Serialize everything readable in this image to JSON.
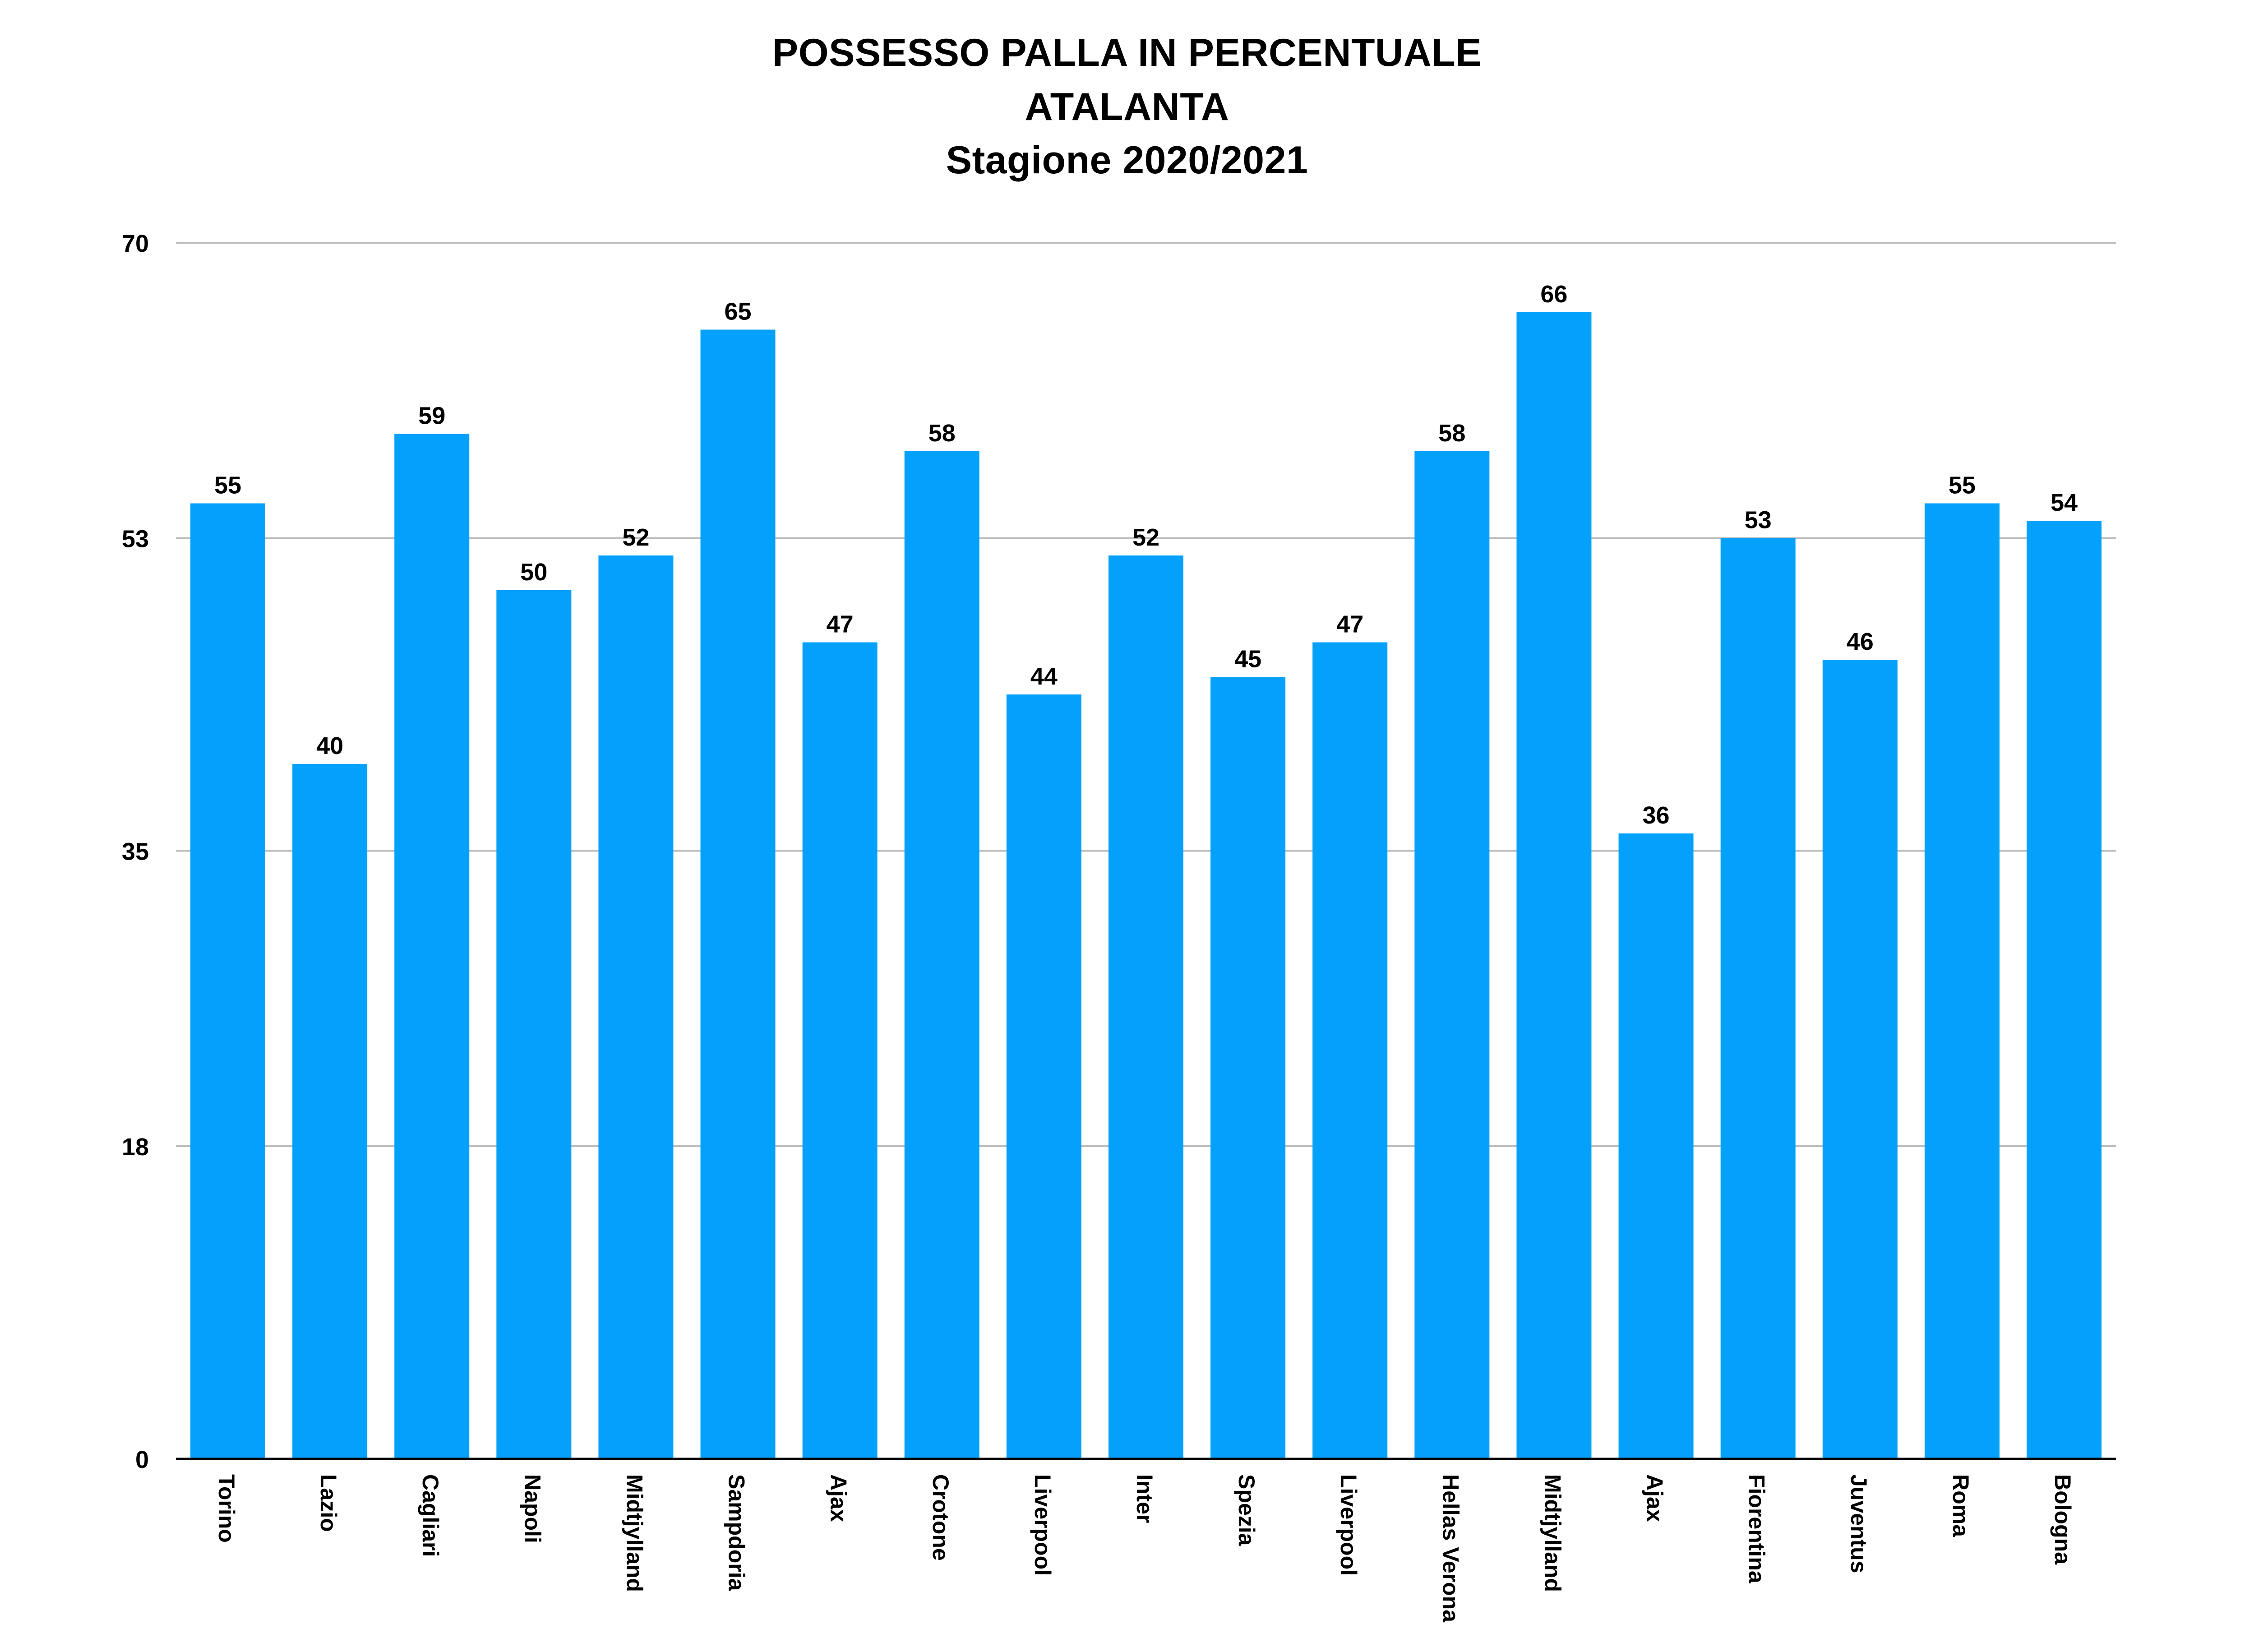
{
  "title_lines": [
    "POSSESSO PALLA IN PERCENTUALE",
    "ATALANTA",
    "Stagione 2020/2021"
  ],
  "colors": {
    "bar": "#03A1FC",
    "grid": "#BDBDBD",
    "axis": "#000000",
    "text": "#000000"
  },
  "chart_data": {
    "type": "bar",
    "title": "POSSESSO PALLA IN PERCENTUALE ATALANTA Stagione 2020/2021",
    "xlabel": "",
    "ylabel": "",
    "ylim": [
      0,
      70
    ],
    "yticks": [
      0,
      18,
      35,
      53,
      70
    ],
    "grid": true,
    "legend": "none",
    "categories": [
      "Torino",
      "Lazio",
      "Cagliari",
      "Napoli",
      "Midtjylland",
      "Sampdoria",
      "Ajax",
      "Crotone",
      "Liverpool",
      "Inter",
      "Spezia",
      "Liverpool",
      "Hellas Verona",
      "Midtjylland",
      "Ajax",
      "Fiorentina",
      "Juventus",
      "Roma",
      "Bologna"
    ],
    "values": [
      55,
      40,
      59,
      50,
      52,
      65,
      47,
      58,
      44,
      52,
      45,
      47,
      58,
      66,
      36,
      53,
      46,
      55,
      54
    ]
  }
}
